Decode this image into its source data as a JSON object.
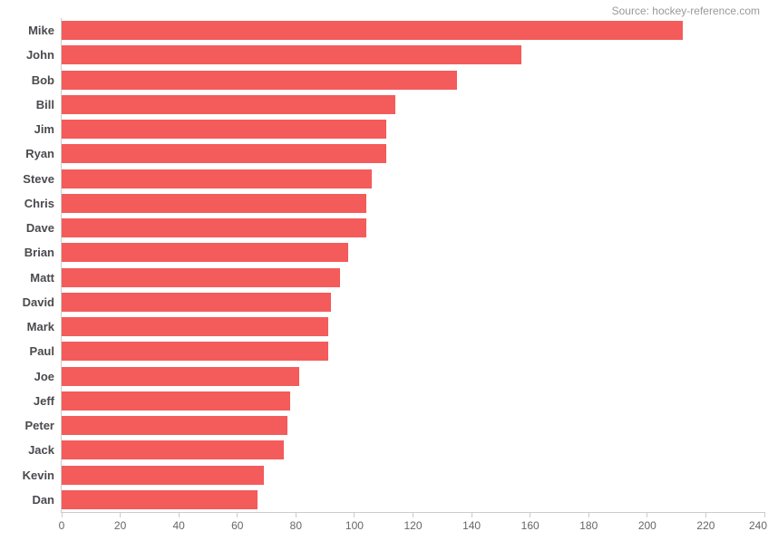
{
  "colors": {
    "background": "#ffffff",
    "bar": "#f45b5b",
    "category_label": "#4a4a4f",
    "tick_label": "#666666",
    "axis_line": "#cccccc",
    "source_text": "#999999"
  },
  "chart_data": {
    "type": "bar",
    "orientation": "horizontal",
    "title": "",
    "xlabel": "",
    "ylabel": "",
    "categories": [
      "Mike",
      "John",
      "Bob",
      "Bill",
      "Jim",
      "Ryan",
      "Steve",
      "Chris",
      "Dave",
      "Brian",
      "Matt",
      "David",
      "Mark",
      "Paul",
      "Joe",
      "Jeff",
      "Peter",
      "Jack",
      "Kevin",
      "Dan"
    ],
    "values": [
      212,
      157,
      135,
      114,
      111,
      111,
      106,
      104,
      104,
      98,
      95,
      92,
      91,
      91,
      81,
      78,
      77,
      76,
      69,
      67
    ],
    "xlim": [
      0,
      240
    ],
    "x_ticks": [
      0,
      20,
      40,
      60,
      80,
      100,
      120,
      140,
      160,
      180,
      200,
      220,
      240
    ],
    "grid": false,
    "legend": false,
    "source_note": "Source: hockey-reference.com"
  }
}
